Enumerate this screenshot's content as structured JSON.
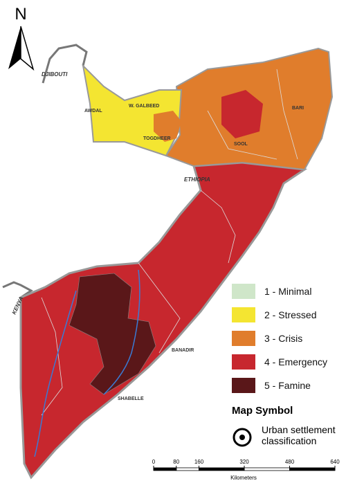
{
  "north_label": "N",
  "places": [
    {
      "label": "DJIBOUTI"
    },
    {
      "label": "AWDAL"
    },
    {
      "label": "W. GALBEED"
    },
    {
      "label": "TOGDHEER"
    },
    {
      "label": "SOOL"
    },
    {
      "label": "BARI"
    },
    {
      "label": "ETHIOPIA"
    },
    {
      "label": "KENYA"
    },
    {
      "label": "BANADIR"
    },
    {
      "label": "SHABELLE"
    }
  ],
  "legend": [
    {
      "label": "1 - Minimal",
      "color": "#cfe6c9"
    },
    {
      "label": "2 - Stressed",
      "color": "#f4e531"
    },
    {
      "label": "3 - Crisis",
      "color": "#e07d2c"
    },
    {
      "label": "4 - Emergency",
      "color": "#c7272e"
    },
    {
      "label": "5 - Famine",
      "color": "#5a1719"
    }
  ],
  "symbol_title": "Map Symbol",
  "symbol_label": "Urban settlement classification",
  "scale": {
    "ticks": [
      0,
      80,
      160,
      320,
      480,
      640
    ],
    "unit": "Kilometers"
  }
}
